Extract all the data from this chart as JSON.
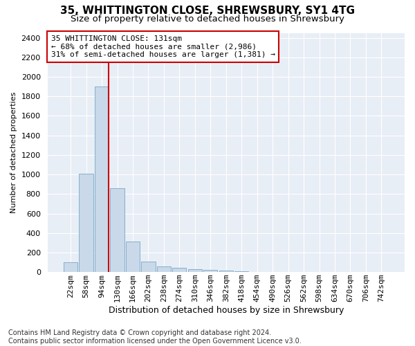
{
  "title1": "35, WHITTINGTON CLOSE, SHREWSBURY, SY1 4TG",
  "title2": "Size of property relative to detached houses in Shrewsbury",
  "xlabel": "Distribution of detached houses by size in Shrewsbury",
  "ylabel": "Number of detached properties",
  "footnote": "Contains HM Land Registry data © Crown copyright and database right 2024.\nContains public sector information licensed under the Open Government Licence v3.0.",
  "bar_labels": [
    "22sqm",
    "58sqm",
    "94sqm",
    "130sqm",
    "166sqm",
    "202sqm",
    "238sqm",
    "274sqm",
    "310sqm",
    "346sqm",
    "382sqm",
    "418sqm",
    "454sqm",
    "490sqm",
    "526sqm",
    "562sqm",
    "598sqm",
    "634sqm",
    "670sqm",
    "706sqm",
    "742sqm"
  ],
  "bar_values": [
    100,
    1010,
    1900,
    860,
    310,
    110,
    60,
    45,
    30,
    20,
    15,
    5,
    3,
    2,
    1,
    1,
    1,
    0,
    0,
    0,
    0
  ],
  "bar_color": "#c9d9ea",
  "bar_edge_color": "#6699bb",
  "highlight_color": "#cc0000",
  "annotation_text": "35 WHITTINGTON CLOSE: 131sqm\n← 68% of detached houses are smaller (2,986)\n31% of semi-detached houses are larger (1,381) →",
  "annotation_box_color": "#ffffff",
  "annotation_box_edge": "#cc0000",
  "ylim": [
    0,
    2450
  ],
  "yticks": [
    0,
    200,
    400,
    600,
    800,
    1000,
    1200,
    1400,
    1600,
    1800,
    2000,
    2200,
    2400
  ],
  "bg_color": "#e8eef6",
  "title1_fontsize": 11,
  "title2_fontsize": 9.5,
  "xlabel_fontsize": 9,
  "ylabel_fontsize": 8,
  "tick_fontsize": 8,
  "annotation_fontsize": 8,
  "footnote_fontsize": 7
}
